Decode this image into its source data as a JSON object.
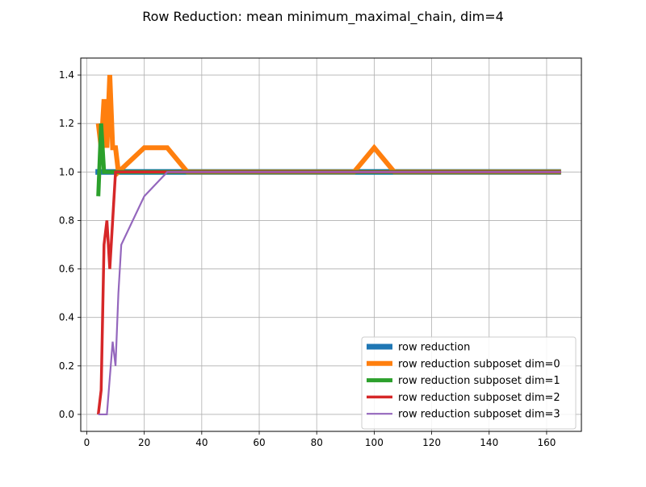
{
  "chart_data": {
    "type": "line",
    "title": "Row Reduction: mean minimum_maximal_chain, dim=4",
    "xlabel": "",
    "ylabel": "",
    "xlim": [
      -2.1,
      172.1
    ],
    "ylim": [
      -0.07,
      1.47
    ],
    "x_ticks": [
      0,
      20,
      40,
      60,
      80,
      100,
      120,
      140,
      160
    ],
    "y_ticks": [
      0.0,
      0.2,
      0.4,
      0.6,
      0.8,
      1.0,
      1.2,
      1.4
    ],
    "grid": true,
    "legend_position": "lower-right",
    "series": [
      {
        "name": "row reduction",
        "color": "#1f77b4",
        "stroke_width": 7,
        "points": [
          [
            3,
            1.0
          ],
          [
            5,
            1.0
          ],
          [
            10,
            1.0
          ],
          [
            50,
            1.0
          ],
          [
            100,
            1.0
          ],
          [
            165,
            1.0
          ]
        ]
      },
      {
        "name": "row reduction subposet dim=0",
        "color": "#ff7f0e",
        "stroke_width": 6,
        "points": [
          [
            4,
            1.2
          ],
          [
            5,
            1.1
          ],
          [
            6,
            1.3
          ],
          [
            7,
            1.1
          ],
          [
            8,
            1.4
          ],
          [
            9,
            1.1
          ],
          [
            10,
            1.1
          ],
          [
            11,
            1.0
          ],
          [
            20,
            1.1
          ],
          [
            28,
            1.1
          ],
          [
            35,
            1.0
          ],
          [
            93,
            1.0
          ],
          [
            100,
            1.1
          ],
          [
            107,
            1.0
          ],
          [
            165,
            1.0
          ]
        ]
      },
      {
        "name": "row reduction subposet dim=1",
        "color": "#2ca02c",
        "stroke_width": 5,
        "points": [
          [
            4,
            0.9
          ],
          [
            5,
            1.2
          ],
          [
            6,
            1.0
          ],
          [
            7,
            1.0
          ],
          [
            165,
            1.0
          ]
        ]
      },
      {
        "name": "row reduction subposet dim=2",
        "color": "#d62728",
        "stroke_width": 3.5,
        "points": [
          [
            4,
            0.0
          ],
          [
            5,
            0.1
          ],
          [
            6,
            0.7
          ],
          [
            7,
            0.8
          ],
          [
            8,
            0.6
          ],
          [
            9,
            0.8
          ],
          [
            10,
            1.0
          ],
          [
            12,
            1.0
          ],
          [
            20,
            1.0
          ],
          [
            165,
            1.0
          ]
        ]
      },
      {
        "name": "row reduction subposet dim=3",
        "color": "#9467bd",
        "stroke_width": 2.2,
        "points": [
          [
            4,
            0.0
          ],
          [
            7,
            0.0
          ],
          [
            9,
            0.3
          ],
          [
            10,
            0.2
          ],
          [
            11,
            0.5
          ],
          [
            12,
            0.7
          ],
          [
            20,
            0.9
          ],
          [
            28,
            1.0
          ],
          [
            165,
            1.0
          ]
        ]
      }
    ]
  }
}
